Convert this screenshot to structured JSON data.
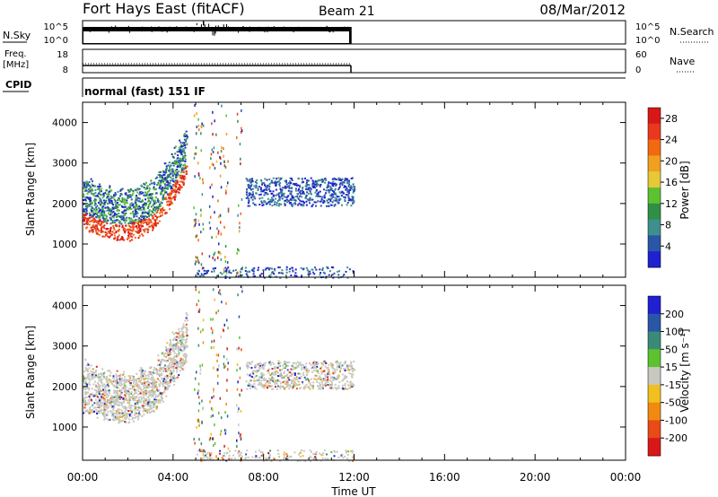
{
  "header": {
    "station": "Fort Hays East (fitACF)",
    "beam": "Beam 21",
    "date": "08/Mar/2012"
  },
  "nsky_panel": {
    "left_label": "N.Sky",
    "left_ticks": [
      "10^5",
      "10^0"
    ],
    "right_ticks": [
      "10^5",
      "10^0"
    ],
    "right_label": "N.Search"
  },
  "freq_panel": {
    "left_label_lines": [
      "Freq.",
      "[MHz]"
    ],
    "left_ticks": [
      "18",
      "8"
    ],
    "right_ticks": [
      "60",
      "0"
    ],
    "right_label": "Nave"
  },
  "cpid": {
    "label": "CPID",
    "value": "normal (fast) 151 IF"
  },
  "chart_data": [
    {
      "type": "scatter",
      "name": "power",
      "ylabel": "Slant Range [km]",
      "ylim": [
        180,
        4500
      ],
      "yticks": [
        "1000",
        "2000",
        "3000",
        "4000"
      ],
      "colorbar": {
        "label": "Power [dB]",
        "ticks": [
          "4",
          "8",
          "12",
          "16",
          "20",
          "24",
          "28"
        ],
        "colors": [
          "#1f20d0",
          "#2a56a8",
          "#3f8f8f",
          "#2f8f46",
          "#5cc230",
          "#e8c838",
          "#f0a020",
          "#f26a10",
          "#e83820",
          "#d81818"
        ]
      },
      "regions": [
        {
          "t0": 0.0,
          "t1": 4.6,
          "r0": 1500,
          "r1": 3550,
          "density": "dense",
          "band": "arc",
          "palette": "power"
        },
        {
          "t0": 4.7,
          "t1": 7.3,
          "r0": 200,
          "r1": 4500,
          "density": "sparse",
          "band": "streaks",
          "palette": "power"
        },
        {
          "t0": 7.2,
          "t1": 12.0,
          "r0": 1950,
          "r1": 2650,
          "density": "medium",
          "band": "flat",
          "palette": "power"
        },
        {
          "t0": 5.0,
          "t1": 12.0,
          "r0": 180,
          "r1": 450,
          "density": "sparse",
          "band": "flat",
          "palette": "power"
        }
      ]
    },
    {
      "type": "scatter",
      "name": "velocity",
      "xlabel": "Time UT",
      "ylabel": "Slant Range [km]",
      "ylim": [
        180,
        4500
      ],
      "yticks": [
        "1000",
        "2000",
        "3000",
        "4000"
      ],
      "xticks": [
        "00:00",
        "04:00",
        "08:00",
        "12:00",
        "16:00",
        "20:00",
        "00:00"
      ],
      "xlim": [
        0,
        24
      ],
      "colorbar": {
        "label": "Velocity [m s⁻¹]",
        "ticks": [
          "200",
          "100",
          "50",
          "15",
          "-15",
          "-50",
          "-100",
          "-200"
        ],
        "colors": [
          "#1f20d0",
          "#2a56a8",
          "#3a8a78",
          "#5cc230",
          "#c8c8c0",
          "#f0c020",
          "#f08a10",
          "#e84a18",
          "#d81818"
        ]
      },
      "regions": [
        {
          "t0": 0.0,
          "t1": 4.6,
          "r0": 1500,
          "r1": 3550,
          "density": "dense",
          "band": "arc",
          "palette": "velocity"
        },
        {
          "t0": 4.7,
          "t1": 7.3,
          "r0": 200,
          "r1": 4500,
          "density": "sparse",
          "band": "streaks",
          "palette": "velocity"
        },
        {
          "t0": 7.2,
          "t1": 12.0,
          "r0": 1950,
          "r1": 2650,
          "density": "medium",
          "band": "flat",
          "palette": "velocity"
        },
        {
          "t0": 5.0,
          "t1": 12.0,
          "r0": 180,
          "r1": 450,
          "density": "sparse",
          "band": "flat",
          "palette": "velocity"
        }
      ]
    }
  ]
}
